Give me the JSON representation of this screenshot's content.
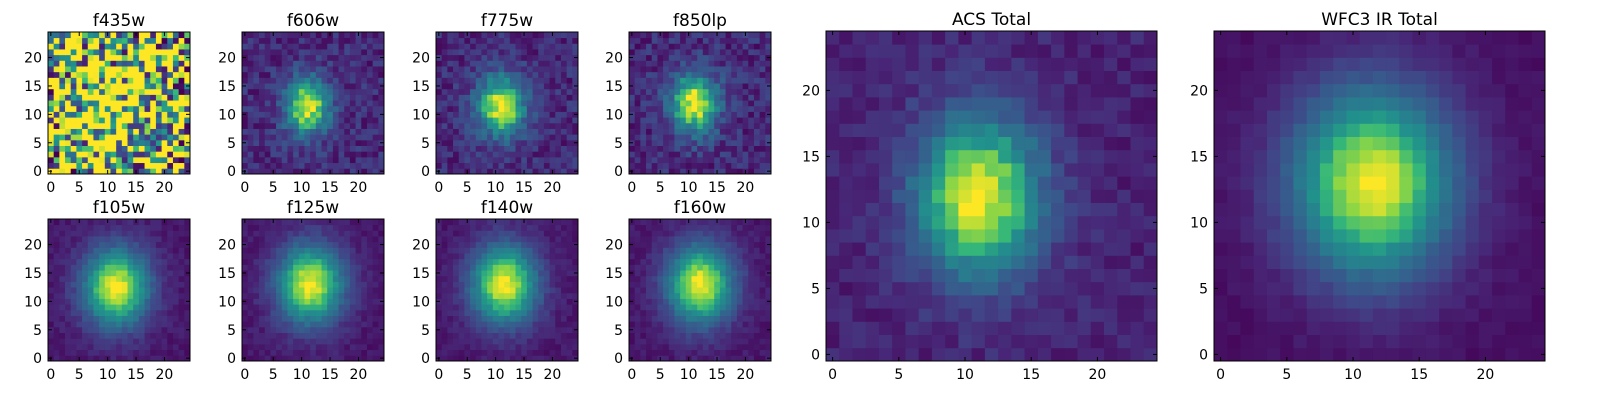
{
  "figure": {
    "tick_labels": [
      "0",
      "5",
      "10",
      "15",
      "20"
    ]
  },
  "chart_data": [
    {
      "type": "heatmap",
      "title": "f435w",
      "xlim": [
        -0.5,
        24.5
      ],
      "ylim": [
        -0.5,
        24.5
      ],
      "xticks": [
        0,
        5,
        10,
        15,
        20
      ],
      "yticks": [
        0,
        5,
        10,
        15,
        20
      ],
      "colormap": "viridis",
      "peak": [
        11,
        11
      ],
      "sigma": [
        9,
        9
      ],
      "noise": 0.75,
      "background": 0.55,
      "grid": false
    },
    {
      "type": "heatmap",
      "title": "f606w",
      "xlim": [
        -0.5,
        24.5
      ],
      "ylim": [
        -0.5,
        24.5
      ],
      "xticks": [
        0,
        5,
        10,
        15,
        20
      ],
      "yticks": [
        0,
        5,
        10,
        15,
        20
      ],
      "colormap": "viridis",
      "peak": [
        11,
        11.5
      ],
      "sigma": [
        2.8,
        3.6
      ],
      "noise": 0.12,
      "background": 0.15,
      "grid": false
    },
    {
      "type": "heatmap",
      "title": "f775w",
      "xlim": [
        -0.5,
        24.5
      ],
      "ylim": [
        -0.5,
        24.5
      ],
      "xticks": [
        0,
        5,
        10,
        15,
        20
      ],
      "yticks": [
        0,
        5,
        10,
        15,
        20
      ],
      "colormap": "viridis",
      "peak": [
        11,
        11.5
      ],
      "sigma": [
        3.0,
        3.8
      ],
      "noise": 0.12,
      "background": 0.15,
      "grid": false
    },
    {
      "type": "heatmap",
      "title": "f850lp",
      "xlim": [
        -0.5,
        24.5
      ],
      "ylim": [
        -0.5,
        24.5
      ],
      "xticks": [
        0,
        5,
        10,
        15,
        20
      ],
      "yticks": [
        0,
        5,
        10,
        15,
        20
      ],
      "colormap": "viridis",
      "peak": [
        11,
        12
      ],
      "sigma": [
        3.0,
        3.8
      ],
      "noise": 0.13,
      "background": 0.15,
      "grid": false
    },
    {
      "type": "heatmap",
      "title": "f105w",
      "xlim": [
        -0.5,
        24.5
      ],
      "ylim": [
        -0.5,
        24.5
      ],
      "xticks": [
        0,
        5,
        10,
        15,
        20
      ],
      "yticks": [
        0,
        5,
        10,
        15,
        20
      ],
      "colormap": "viridis",
      "peak": [
        11.5,
        12.5
      ],
      "sigma": [
        4.2,
        5.0
      ],
      "noise": 0.05,
      "background": 0.08,
      "grid": false
    },
    {
      "type": "heatmap",
      "title": "f125w",
      "xlim": [
        -0.5,
        24.5
      ],
      "ylim": [
        -0.5,
        24.5
      ],
      "xticks": [
        0,
        5,
        10,
        15,
        20
      ],
      "yticks": [
        0,
        5,
        10,
        15,
        20
      ],
      "colormap": "viridis",
      "peak": [
        11.5,
        13
      ],
      "sigma": [
        4.2,
        5.0
      ],
      "noise": 0.05,
      "background": 0.08,
      "grid": false
    },
    {
      "type": "heatmap",
      "title": "f140w",
      "xlim": [
        -0.5,
        24.5
      ],
      "ylim": [
        -0.5,
        24.5
      ],
      "xticks": [
        0,
        5,
        10,
        15,
        20
      ],
      "yticks": [
        0,
        5,
        10,
        15,
        20
      ],
      "colormap": "viridis",
      "peak": [
        11.5,
        13
      ],
      "sigma": [
        4.2,
        5.0
      ],
      "noise": 0.05,
      "background": 0.08,
      "grid": false
    },
    {
      "type": "heatmap",
      "title": "f160w",
      "xlim": [
        -0.5,
        24.5
      ],
      "ylim": [
        -0.5,
        24.5
      ],
      "xticks": [
        0,
        5,
        10,
        15,
        20
      ],
      "yticks": [
        0,
        5,
        10,
        15,
        20
      ],
      "colormap": "viridis",
      "peak": [
        12,
        13
      ],
      "sigma": [
        4.2,
        5.0
      ],
      "noise": 0.05,
      "background": 0.08,
      "grid": false
    },
    {
      "type": "heatmap",
      "title": "ACS Total",
      "xlim": [
        -0.5,
        24.5
      ],
      "ylim": [
        -0.5,
        24.5
      ],
      "xticks": [
        0,
        5,
        10,
        15,
        20
      ],
      "yticks": [
        0,
        5,
        10,
        15,
        20
      ],
      "colormap": "viridis",
      "peak": [
        11,
        12
      ],
      "sigma": [
        3.4,
        4.4
      ],
      "noise": 0.07,
      "background": 0.12,
      "grid": false
    },
    {
      "type": "heatmap",
      "title": "WFC3 IR Total",
      "xlim": [
        -0.5,
        24.5
      ],
      "ylim": [
        -0.5,
        24.5
      ],
      "xticks": [
        0,
        5,
        10,
        15,
        20
      ],
      "yticks": [
        0,
        5,
        10,
        15,
        20
      ],
      "colormap": "viridis",
      "peak": [
        11.5,
        13
      ],
      "sigma": [
        4.4,
        5.2
      ],
      "noise": 0.03,
      "background": 0.05,
      "grid": false
    }
  ]
}
